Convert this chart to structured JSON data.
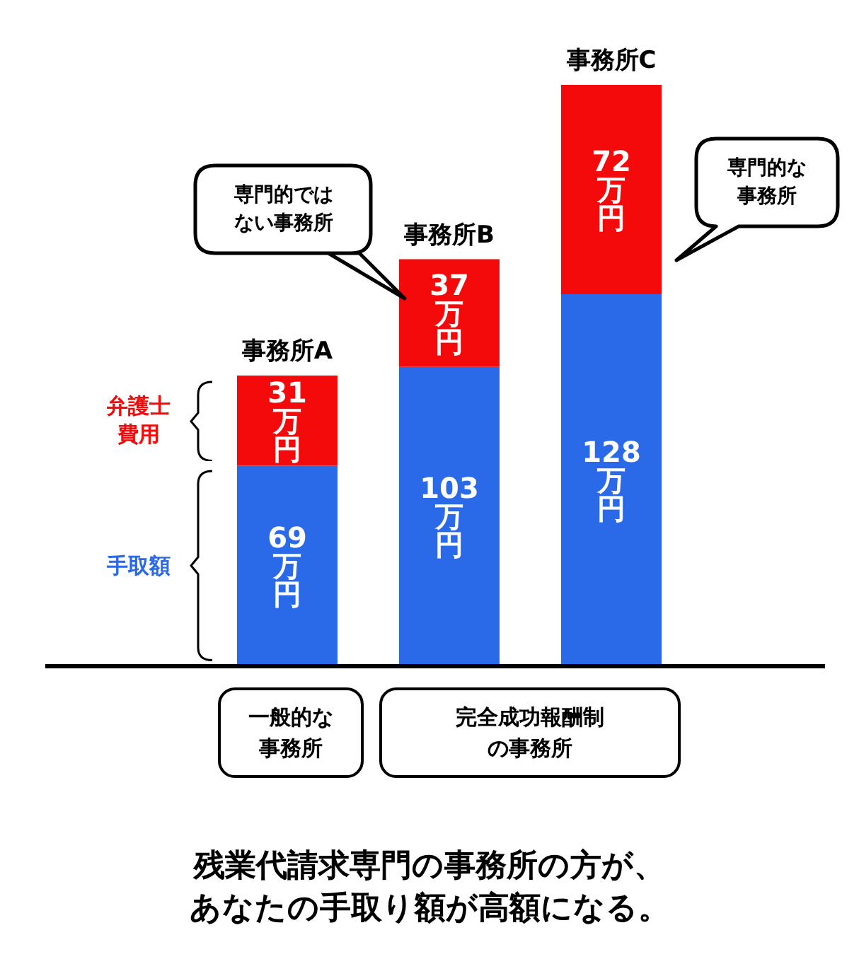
{
  "chart_data": {
    "type": "bar",
    "stacked": true,
    "title": "残業代請求専門の事務所の方が、あなたの手取り額が高額になる。",
    "categories": [
      "事務所A",
      "事務所B",
      "事務所C"
    ],
    "series": [
      {
        "name": "手取額",
        "color": "#2a6ae8",
        "values": [
          69,
          103,
          128
        ],
        "value_labels": [
          "69万円",
          "103万円",
          "128万円"
        ]
      },
      {
        "name": "弁護士費用",
        "color": "#f40a0a",
        "values": [
          31,
          37,
          72
        ],
        "value_labels": [
          "31万円",
          "37万円",
          "72万円"
        ]
      }
    ],
    "annotations": [
      "専門的ではない事務所",
      "専門的な事務所",
      "一般的な事務所",
      "完全成功報酬制の事務所"
    ],
    "legend": false
  }
}
